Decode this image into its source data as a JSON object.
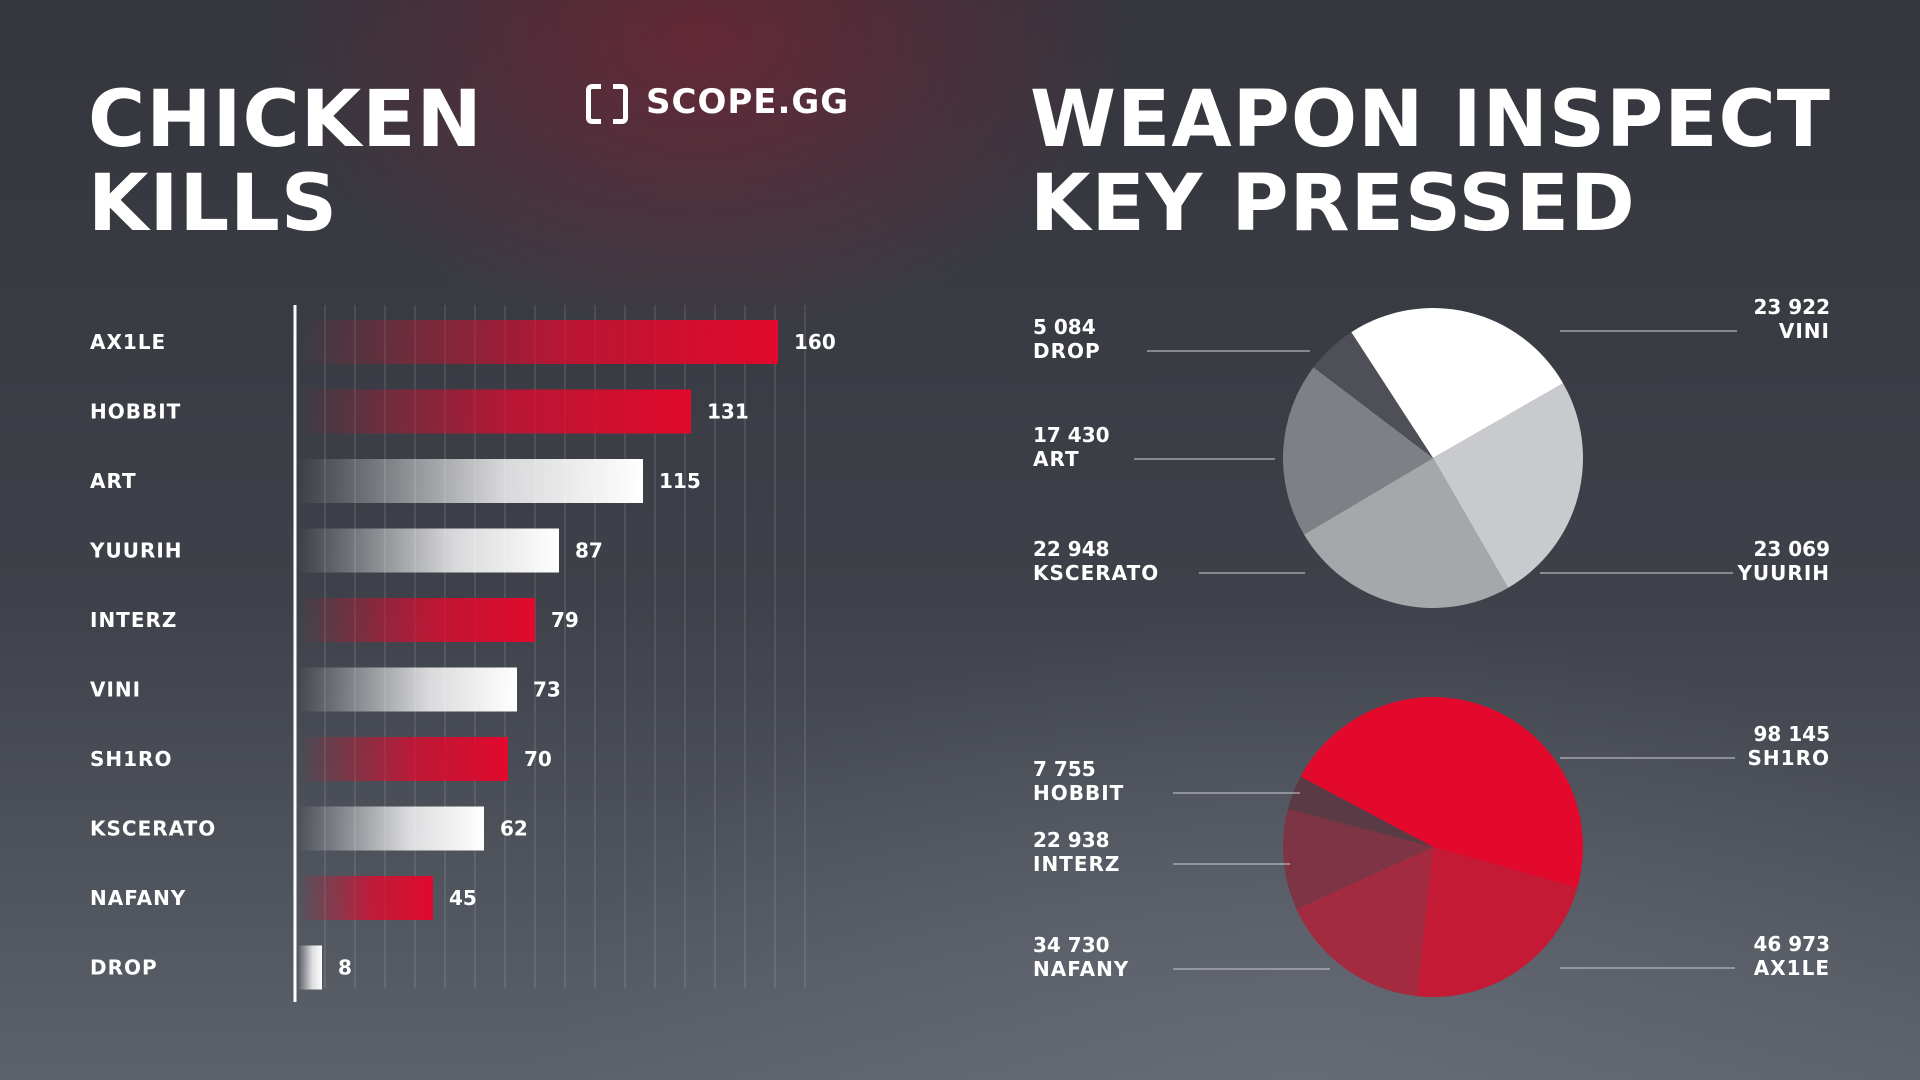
{
  "logo": {
    "text": "SCOPE.GG"
  },
  "chart_data": [
    {
      "type": "bar",
      "orientation": "horizontal",
      "title": "CHICKEN KILLS",
      "categories": [
        "AX1LE",
        "HOBBIT",
        "ART",
        "YUURIH",
        "INTERZ",
        "VINI",
        "SH1RO",
        "KSCERATO",
        "NAFANY",
        "DROP"
      ],
      "values": [
        160,
        131,
        115,
        87,
        79,
        73,
        70,
        62,
        45,
        8
      ],
      "bar_colors": [
        "red",
        "red",
        "white",
        "white",
        "red",
        "white",
        "red",
        "white",
        "red",
        "white"
      ],
      "xlim": [
        0,
        170
      ],
      "grid": true,
      "colors": {
        "red": "#e2092d",
        "white": "#ffffff"
      }
    },
    {
      "type": "pie",
      "title": "WEAPON INSPECT KEY PRESSED",
      "labels": [
        "VINI",
        "YUURIH",
        "KSCERATO",
        "ART",
        "DROP"
      ],
      "value_labels": [
        "23 922",
        "23 069",
        "22 948",
        "17 430",
        "5 084"
      ],
      "values": [
        23922,
        23069,
        22948,
        17430,
        5084
      ],
      "colors": [
        "#ffffff",
        "#c9cacd",
        "#a6a7ab",
        "#7f8086",
        "#4f5057"
      ]
    },
    {
      "type": "pie",
      "labels": [
        "SH1RO",
        "AX1LE",
        "NAFANY",
        "INTERZ",
        "HOBBIT"
      ],
      "value_labels": [
        "98 145",
        "46 973",
        "34 730",
        "22 938",
        "7 755"
      ],
      "values": [
        98145,
        46973,
        34730,
        22938,
        7755
      ],
      "colors": [
        "#e2092d",
        "#c51a35",
        "#a42a3f",
        "#7d3444",
        "#5a3a45"
      ]
    }
  ]
}
